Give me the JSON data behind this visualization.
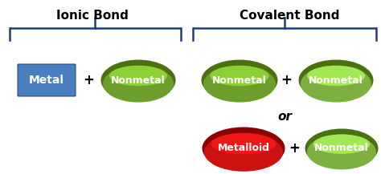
{
  "bg_color": "#ffffff",
  "title_ionic": "Ionic Bond",
  "title_covalent": "Covalent Bond",
  "or_text": "or",
  "metal_label": "Metal",
  "nonmetal_label": "Nonmetal",
  "metalloid_label": "Metalloid",
  "metal_fill": "#4A7FBF",
  "metal_edge": "#1F3F7A",
  "green_fill": "#6B9E2A",
  "green_edge": "#4A7010",
  "green_fill2": "#7DB040",
  "red_fill": "#CC1111",
  "red_edge": "#8B0000",
  "text_color": "#ffffff",
  "title_color": "#000000",
  "bracket_color": "#1F3F7A",
  "plus_color": "#000000",
  "font_size_title": 11,
  "font_size_label": 9,
  "font_size_or": 11,
  "font_size_plus": 12
}
